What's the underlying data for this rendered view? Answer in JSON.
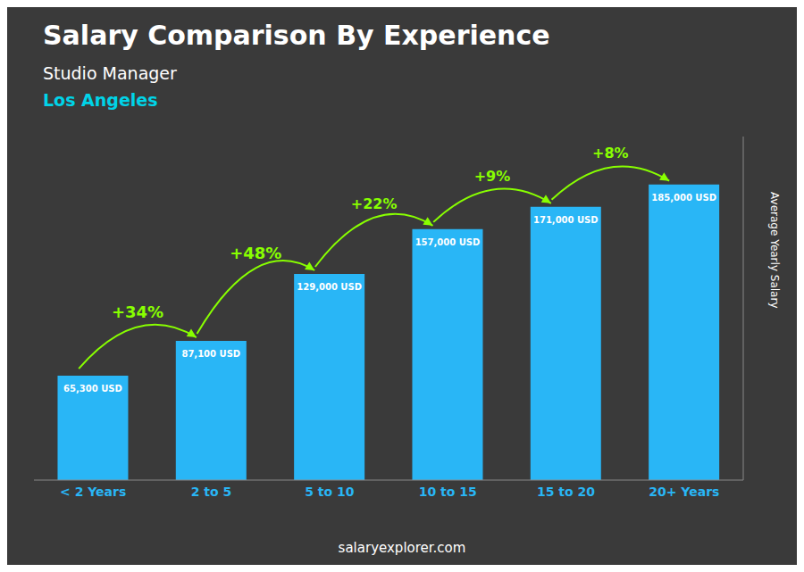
{
  "chart_data": {
    "type": "bar",
    "title": "Salary Comparison By Experience",
    "subtitle": "Studio Manager",
    "city": {
      "text": "Los Angeles",
      "color": "#00d4e8"
    },
    "y_label": "Average Yearly Salary",
    "footer": "salaryexplorer.com",
    "categories": [
      "< 2 Years",
      "2 to 5",
      "5 to 10",
      "10 to 15",
      "15 to 20",
      "20+ Years"
    ],
    "values": [
      65300,
      87100,
      129000,
      157000,
      171000,
      185000
    ],
    "value_labels": [
      "65,300 USD",
      "87,100 USD",
      "129,000 USD",
      "157,000 USD",
      "171,000 USD",
      "185,000 USD"
    ],
    "data_labels": true,
    "annotations": [
      {
        "text": "+34%",
        "color": "#88ff00"
      },
      {
        "text": "+48%",
        "color": "#88ff00"
      },
      {
        "text": "+22%",
        "color": "#88ff00"
      },
      {
        "text": "+9%",
        "color": "#88ff00"
      },
      {
        "text": "+8%",
        "color": "#88ff00"
      }
    ],
    "color": "#29b6f6",
    "ylim": [
      0,
      215000
    ],
    "tick_labels": "x",
    "grid": false
  }
}
